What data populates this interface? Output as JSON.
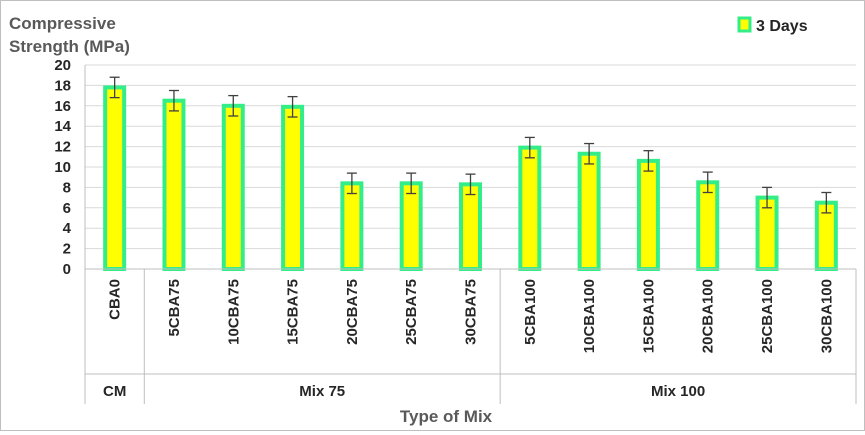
{
  "chart_data": {
    "type": "bar",
    "ylabel_lines": [
      "Compressive",
      "Strength (MPa)"
    ],
    "xlabel": "Type of Mix",
    "ylim": [
      0,
      20
    ],
    "ytick_step": 2,
    "ytick_labels": [
      "0",
      "2",
      "4",
      "6",
      "8",
      "10",
      "12",
      "14",
      "16",
      "18",
      "20"
    ],
    "grid": true,
    "legend_position": "top-right",
    "categories": [
      "CBA0",
      "5CBA75",
      "10CBA75",
      "15CBA75",
      "20CBA75",
      "25CBA75",
      "30CBA75",
      "5CBA100",
      "10CBA100",
      "15CBA100",
      "20CBA100",
      "25CBA100",
      "30CBA100"
    ],
    "groups": [
      {
        "label": "CM",
        "count": 1
      },
      {
        "label": "Mix 75",
        "count": 6
      },
      {
        "label": "Mix 100",
        "count": 6
      }
    ],
    "series": [
      {
        "name": "3 Days",
        "values": [
          17.8,
          16.5,
          16.0,
          15.9,
          8.4,
          8.4,
          8.3,
          11.9,
          11.3,
          10.6,
          8.5,
          7.0,
          6.5
        ],
        "error": [
          1.0,
          1.0,
          1.0,
          1.0,
          1.0,
          1.0,
          1.0,
          1.0,
          1.0,
          1.0,
          1.0,
          1.0,
          1.0
        ]
      }
    ],
    "colors": {
      "bar_fill": "#ffff00",
      "bar_border": "#33ee88",
      "grid": "#d9d9d9",
      "axis": "#bfbfbf",
      "error_bar": "#404040"
    }
  }
}
